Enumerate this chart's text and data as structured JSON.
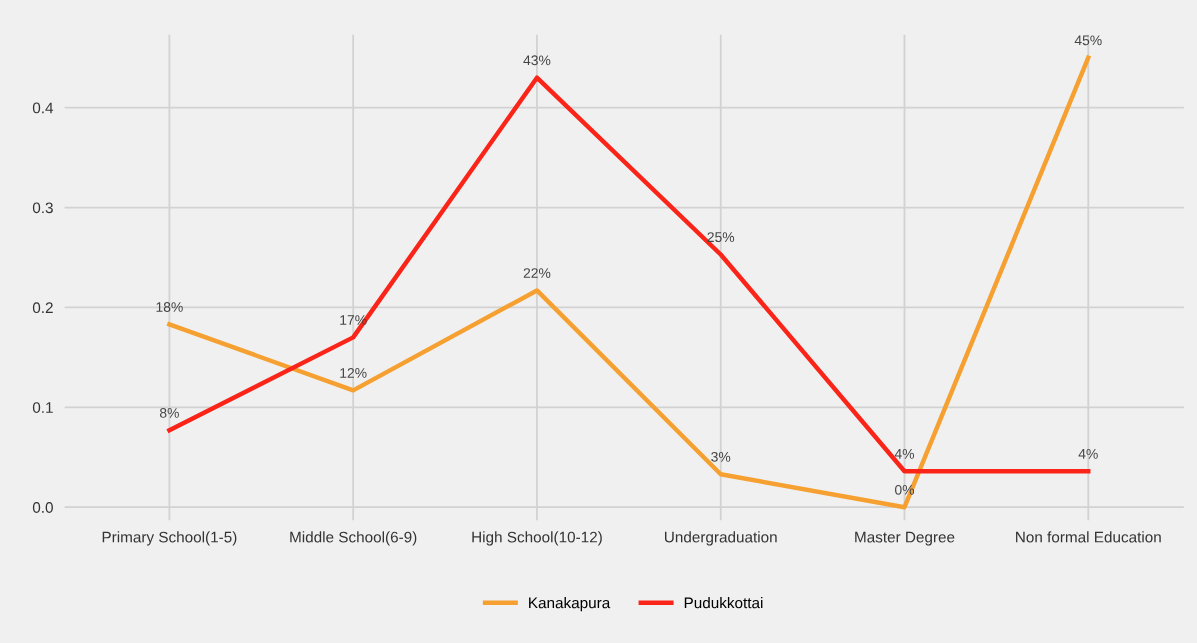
{
  "chart_data": {
    "type": "line",
    "categories": [
      "Primary School(1-5)",
      "Middle School(6-9)",
      "High School(10-12)",
      "Undergraduation",
      "Master Degree",
      "Non formal Education"
    ],
    "series": [
      {
        "name": "Kanakapura",
        "color": "#f5a030",
        "values": [
          0.183,
          0.117,
          0.217,
          0.033,
          0.0,
          0.45
        ],
        "value_labels": [
          "18%",
          "12%",
          "22%",
          "3%",
          "0%",
          "45%"
        ]
      },
      {
        "name": "Pudukkottai",
        "color": "#fb2418",
        "values": [
          0.077,
          0.17,
          0.43,
          0.253,
          0.036,
          0.036
        ],
        "value_labels": [
          "8%",
          "17%",
          "43%",
          "25%",
          "4%",
          "4%"
        ]
      }
    ],
    "ylim": [
      -0.013,
      0.473
    ],
    "yticks": [
      {
        "value": 0,
        "label": "0.0"
      },
      0.1,
      0.2,
      0.3,
      0.4
    ],
    "grid": true,
    "legend": "bottom",
    "marker": "none",
    "line_style": "solid"
  }
}
